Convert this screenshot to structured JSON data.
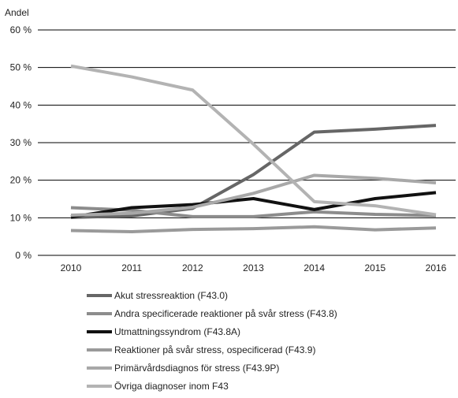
{
  "chart_data": {
    "type": "line",
    "ylabel": "Andel",
    "ylim": [
      0,
      60
    ],
    "yticks": [
      0,
      10,
      20,
      30,
      40,
      50,
      60
    ],
    "ytick_labels": [
      "0 %",
      "10 %",
      "20 %",
      "30 %",
      "40 %",
      "50 %",
      "60 %"
    ],
    "x": [
      "2010",
      "2011",
      "2012",
      "2013",
      "2014",
      "2015",
      "2016"
    ],
    "grid": true,
    "legend_position": "bottom",
    "series": [
      {
        "name": "Akut stressreaktion (F43.0)",
        "color": "#666666",
        "values": [
          10.1,
          10.5,
          12.5,
          21.5,
          32.8,
          33.6,
          34.6
        ]
      },
      {
        "name": "Andra specificerade reaktioner på svår stress (F43.8)",
        "color": "#8c8c8c",
        "values": [
          12.7,
          12.0,
          10.3,
          10.3,
          11.6,
          10.9,
          10.6
        ]
      },
      {
        "name": "Utmattningssyndrom (F43.8A)",
        "color": "#111111",
        "values": [
          10.2,
          12.7,
          13.5,
          15.1,
          12.2,
          15.1,
          16.7
        ]
      },
      {
        "name": "Reaktioner på svår stress, ospecificerad (F43.9)",
        "color": "#9a9a9a",
        "values": [
          6.6,
          6.3,
          6.9,
          7.1,
          7.6,
          6.8,
          7.3
        ]
      },
      {
        "name": "Primärvårdsdiagnos för stress (F43.9P)",
        "color": "#a8a8a8",
        "values": [
          10.7,
          11.2,
          12.8,
          16.5,
          21.3,
          20.5,
          19.3
        ]
      },
      {
        "name": "Övriga diagnoser inom F43",
        "color": "#b3b3b3",
        "values": [
          50.4,
          47.5,
          44.0,
          29.6,
          14.3,
          13.2,
          10.8
        ]
      }
    ]
  }
}
